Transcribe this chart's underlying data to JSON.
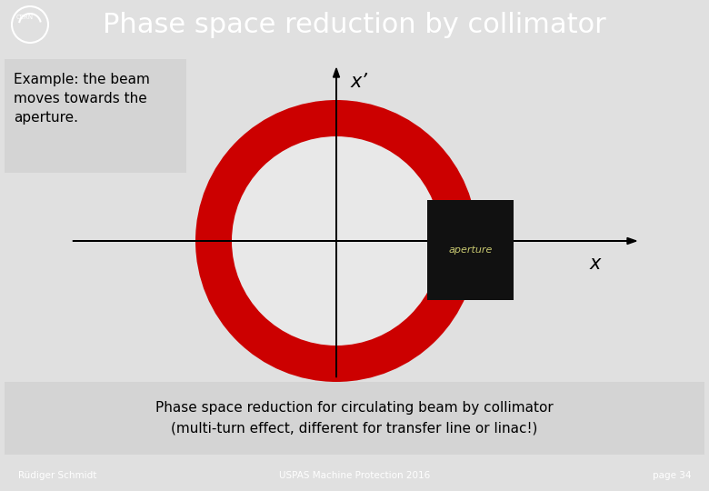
{
  "title": "Phase space reduction by collimator",
  "header_bg": "#3d6b9e",
  "header_text_color": "#ffffff",
  "header_font_size": 22,
  "footer_bg": "#3d6b9e",
  "footer_text_color": "#ffffff",
  "footer_left": "Rüdiger Schmidt",
  "footer_center": "USPAS Machine Protection 2016",
  "footer_right": "page 34",
  "main_bg": "#e0e0e0",
  "example_text": "Example: the beam\nmoves towards the\naperture.",
  "example_bg": "#d4d4d4",
  "circle_color": "#cc0000",
  "circle_inner_color": "#e8e8e8",
  "axis_label_x": "x",
  "axis_label_xprime": "x’",
  "aperture_color": "#111111",
  "aperture_text": "aperture",
  "aperture_text_color": "#c8c870",
  "bottom_text_line1": "Phase space reduction for circulating beam by collimator",
  "bottom_text_line2": "(multi-turn effect, different for transfer line or linac!)",
  "bottom_bg": "#d4d4d4",
  "cern_color": "#ffffff"
}
